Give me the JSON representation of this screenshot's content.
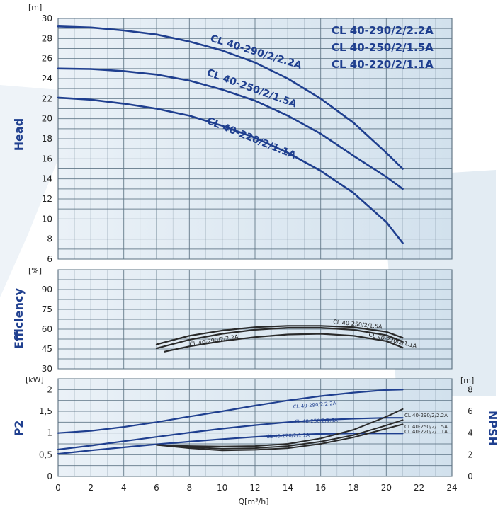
{
  "chart_data": [
    {
      "type": "line",
      "panel": "head",
      "ylabel": "Head",
      "yunit": "[m]",
      "ylim": [
        6,
        30
      ],
      "yticks": [
        "6",
        "8",
        "10",
        "12",
        "14",
        "16",
        "18",
        "20",
        "22",
        "24",
        "26",
        "28",
        "30"
      ],
      "xlim": [
        0,
        24
      ],
      "grid": true,
      "legend": [
        "CL 40-290/2/2.2A",
        "CL 40-250/2/1.5A",
        "CL 40-220/2/1.1A"
      ],
      "legend_position": "top-right",
      "series": [
        {
          "name": "CL 40-290/2/2.2A",
          "x": [
            0,
            2,
            4,
            6,
            8,
            10,
            12,
            14,
            16,
            18,
            20,
            21
          ],
          "y": [
            29.2,
            29.1,
            28.8,
            28.4,
            27.7,
            26.8,
            25.6,
            24.0,
            22.0,
            19.6,
            16.6,
            15.0
          ]
        },
        {
          "name": "CL 40-250/2/1.5A",
          "x": [
            0,
            2,
            4,
            6,
            8,
            10,
            12,
            14,
            16,
            18,
            20,
            21
          ],
          "y": [
            25.0,
            24.95,
            24.75,
            24.4,
            23.8,
            22.9,
            21.8,
            20.3,
            18.5,
            16.3,
            14.2,
            13.0
          ]
        },
        {
          "name": "CL 40-220/2/1.1A",
          "x": [
            0,
            2,
            4,
            6,
            8,
            10,
            12,
            14,
            16,
            18,
            20,
            21
          ],
          "y": [
            22.1,
            21.9,
            21.5,
            21.0,
            20.3,
            19.3,
            18.1,
            16.6,
            14.8,
            12.6,
            9.7,
            7.6
          ]
        }
      ]
    },
    {
      "type": "line",
      "panel": "efficiency",
      "ylabel": "Efficiency",
      "yunit": "[%]",
      "ylim": [
        30,
        105
      ],
      "yticks": [
        "30",
        "45",
        "60",
        "75",
        "90"
      ],
      "xlim": [
        0,
        24
      ],
      "grid": true,
      "series": [
        {
          "name": "CL 40-290/2/2.2A",
          "x": [
            6,
            8,
            10,
            12,
            14,
            16,
            18,
            20,
            21
          ],
          "y": [
            45.5,
            52.0,
            56.5,
            59.5,
            61.0,
            61.0,
            59.5,
            55.5,
            50.5
          ]
        },
        {
          "name": "CL 40-250/2/1.5A",
          "x": [
            6,
            8,
            10,
            12,
            14,
            16,
            18,
            20,
            21
          ],
          "y": [
            48.5,
            55.0,
            59.0,
            61.5,
            62.5,
            62.5,
            61.5,
            58.0,
            53.5
          ]
        },
        {
          "name": "CL 40-220/2/1.1A",
          "x": [
            6.5,
            8,
            10,
            12,
            14,
            16,
            18,
            20,
            21
          ],
          "y": [
            43.0,
            47.0,
            51.0,
            54.0,
            56.0,
            56.5,
            55.0,
            51.0,
            46.0
          ]
        }
      ],
      "labels": [
        "CL 40-290/2/2.2A",
        "CL 40-250/2/1.5A",
        "CL 40-220/2/1.1A"
      ]
    },
    {
      "type": "line",
      "panel": "power",
      "ylabel": "P2",
      "yunit": "[kW]",
      "ylim": [
        0,
        2.25
      ],
      "yticks": [
        "0",
        "0,5",
        "1",
        "1,5",
        "2"
      ],
      "y2label": "NPSH",
      "y2unit": "[m]",
      "y2lim": [
        0,
        9
      ],
      "y2ticks": [
        "0",
        "2",
        "4",
        "6",
        "8"
      ],
      "xlabel": "Q[m³/h]",
      "xlim": [
        0,
        24
      ],
      "xticks": [
        "0",
        "2",
        "4",
        "6",
        "8",
        "10",
        "12",
        "14",
        "16",
        "18",
        "20",
        "22",
        "24"
      ],
      "grid": true,
      "series": [
        {
          "name": "CL 40-290/2/2.2A",
          "axis": "P2",
          "x": [
            0,
            2,
            4,
            6,
            8,
            10,
            12,
            14,
            16,
            18,
            20,
            21
          ],
          "y": [
            1.0,
            1.05,
            1.14,
            1.25,
            1.38,
            1.5,
            1.63,
            1.75,
            1.85,
            1.93,
            1.99,
            2.0
          ]
        },
        {
          "name": "CL 40-250/2/1.5A",
          "axis": "P2",
          "x": [
            0,
            2,
            4,
            6,
            8,
            10,
            12,
            14,
            16,
            18,
            20,
            21
          ],
          "y": [
            0.62,
            0.71,
            0.81,
            0.91,
            1.01,
            1.1,
            1.18,
            1.25,
            1.3,
            1.33,
            1.35,
            1.35
          ]
        },
        {
          "name": "CL 40-220/2/1.1A",
          "axis": "P2",
          "x": [
            0,
            2,
            4,
            6,
            8,
            10,
            12,
            14,
            16,
            18,
            20,
            21
          ],
          "y": [
            0.52,
            0.6,
            0.67,
            0.74,
            0.8,
            0.86,
            0.91,
            0.95,
            0.98,
            0.99,
            0.99,
            0.99
          ]
        },
        {
          "name": "CL 40-290/2/2.2A",
          "axis": "NPSH",
          "x": [
            6,
            8,
            10,
            12,
            14,
            16,
            18,
            20,
            21
          ],
          "y": [
            2.9,
            2.8,
            2.75,
            2.8,
            3.0,
            3.5,
            4.3,
            5.5,
            6.2
          ]
        },
        {
          "name": "CL 40-250/2/1.5A",
          "axis": "NPSH",
          "x": [
            6,
            8,
            10,
            12,
            14,
            16,
            18,
            20,
            21
          ],
          "y": [
            2.9,
            2.7,
            2.55,
            2.6,
            2.8,
            3.2,
            3.8,
            4.7,
            5.2
          ]
        },
        {
          "name": "CL 40-220/2/1.1A",
          "axis": "NPSH",
          "x": [
            6,
            8,
            10,
            12,
            14,
            16,
            18,
            20,
            21
          ],
          "y": [
            2.9,
            2.6,
            2.4,
            2.45,
            2.6,
            3.0,
            3.6,
            4.4,
            4.8
          ]
        }
      ],
      "labels": [
        "CL 40-290/2/2.2A",
        "CL 40-250/2/1.5A",
        "CL 40-220/2/1.1A",
        "CL 40-290/2/2.2A",
        "CL 40-250/2/1.5A",
        "CL 40-220/2/1.1A"
      ]
    }
  ],
  "colors": {
    "curve_blue": "#1f3f8f",
    "curve_black": "#2a2a2a",
    "label_blue": "#1f3f8f",
    "panel_bg": "#d6e4ef",
    "grid": "#5d7384"
  }
}
